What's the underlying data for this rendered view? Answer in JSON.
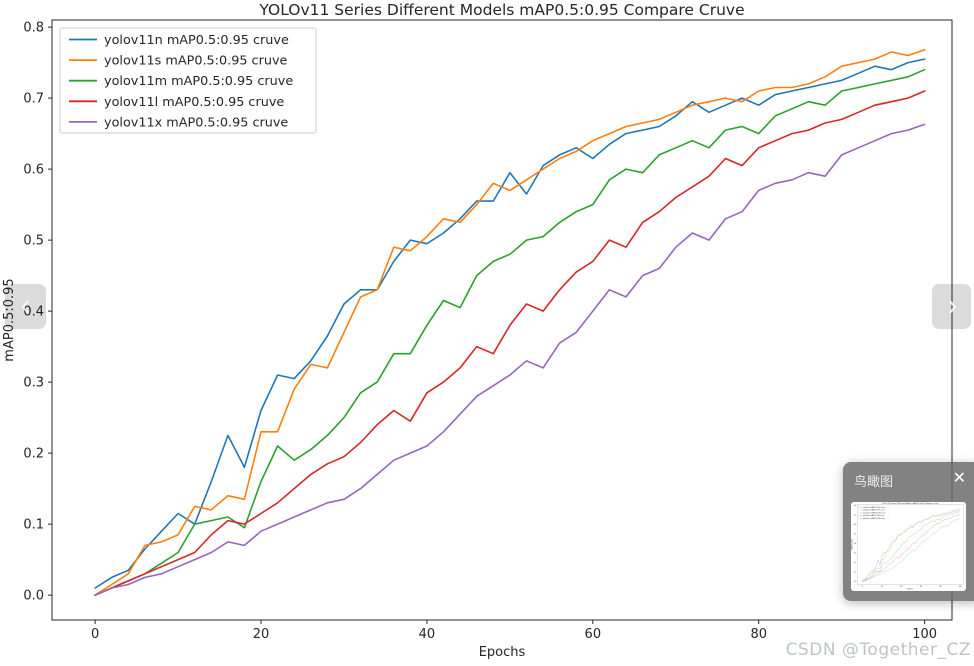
{
  "viewer": {
    "watermark": "CSDN @Together_CZ",
    "prev_icon": "chevron-left",
    "next_icon": "chevron-right",
    "minimap": {
      "title": "鸟瞰图",
      "close_icon": "x",
      "close_glyph": "✕"
    }
  },
  "chart_data": {
    "type": "line",
    "title": "YOLOv11 Series Different Models mAP0.5:0.95 Compare Cruve",
    "xlabel": "Epochs",
    "ylabel": "mAP0.5:0.95",
    "xlim": [
      -5.2,
      103.3
    ],
    "ylim": [
      -0.035,
      0.81
    ],
    "x_ticks": [
      0,
      20,
      40,
      60,
      80,
      100
    ],
    "x_tick_labels": [
      "0",
      "20",
      "40",
      "60",
      "80",
      "100"
    ],
    "y_ticks": [
      0.0,
      0.1,
      0.2,
      0.3,
      0.4,
      0.5,
      0.6,
      0.7,
      0.8
    ],
    "y_tick_labels": [
      "0.0",
      "0.1",
      "0.2",
      "0.3",
      "0.4",
      "0.5",
      "0.6",
      "0.7",
      "0.8"
    ],
    "grid": false,
    "legend_position": "upper left",
    "x_start": 0,
    "x_step": 2,
    "series": [
      {
        "name": "yolov11n mAP0.5:0.95 cruve",
        "color": "#1f77b4",
        "values": [
          0.01,
          0.025,
          0.035,
          0.065,
          0.09,
          0.115,
          0.1,
          0.16,
          0.225,
          0.18,
          0.26,
          0.31,
          0.305,
          0.33,
          0.365,
          0.41,
          0.43,
          0.43,
          0.47,
          0.5,
          0.495,
          0.51,
          0.53,
          0.555,
          0.555,
          0.595,
          0.565,
          0.605,
          0.62,
          0.63,
          0.615,
          0.635,
          0.65,
          0.655,
          0.66,
          0.675,
          0.695,
          0.68,
          0.69,
          0.7,
          0.69,
          0.705,
          0.71,
          0.715,
          0.72,
          0.725,
          0.735,
          0.745,
          0.74,
          0.75,
          0.755
        ]
      },
      {
        "name": "yolov11s mAP0.5:0.95 cruve",
        "color": "#ff7f0e",
        "values": [
          0.0,
          0.015,
          0.03,
          0.07,
          0.075,
          0.085,
          0.125,
          0.12,
          0.14,
          0.135,
          0.23,
          0.23,
          0.29,
          0.325,
          0.32,
          0.37,
          0.42,
          0.43,
          0.49,
          0.485,
          0.505,
          0.53,
          0.525,
          0.55,
          0.58,
          0.57,
          0.585,
          0.6,
          0.615,
          0.625,
          0.64,
          0.65,
          0.66,
          0.665,
          0.67,
          0.68,
          0.69,
          0.695,
          0.7,
          0.695,
          0.71,
          0.715,
          0.715,
          0.72,
          0.73,
          0.745,
          0.75,
          0.755,
          0.765,
          0.76,
          0.768
        ]
      },
      {
        "name": "yolov11m mAP0.5:0.95 cruve",
        "color": "#2ca02c",
        "values": [
          0.0,
          0.01,
          0.02,
          0.03,
          0.045,
          0.06,
          0.1,
          0.105,
          0.11,
          0.095,
          0.16,
          0.21,
          0.19,
          0.205,
          0.225,
          0.25,
          0.285,
          0.3,
          0.34,
          0.34,
          0.38,
          0.415,
          0.405,
          0.45,
          0.47,
          0.48,
          0.5,
          0.505,
          0.525,
          0.54,
          0.55,
          0.585,
          0.6,
          0.595,
          0.62,
          0.63,
          0.64,
          0.63,
          0.655,
          0.66,
          0.65,
          0.675,
          0.685,
          0.695,
          0.69,
          0.71,
          0.715,
          0.72,
          0.725,
          0.73,
          0.74
        ]
      },
      {
        "name": "yolov11l mAP0.5:0.95 cruve",
        "color": "#d62728",
        "values": [
          0.0,
          0.01,
          0.02,
          0.03,
          0.04,
          0.05,
          0.06,
          0.085,
          0.105,
          0.1,
          0.115,
          0.13,
          0.15,
          0.17,
          0.185,
          0.195,
          0.215,
          0.24,
          0.26,
          0.245,
          0.285,
          0.3,
          0.32,
          0.35,
          0.34,
          0.38,
          0.41,
          0.4,
          0.43,
          0.455,
          0.47,
          0.5,
          0.49,
          0.525,
          0.54,
          0.56,
          0.575,
          0.59,
          0.615,
          0.605,
          0.63,
          0.64,
          0.65,
          0.655,
          0.665,
          0.67,
          0.68,
          0.69,
          0.695,
          0.7,
          0.71
        ]
      },
      {
        "name": "yolov11x mAP0.5:0.95 cruve",
        "color": "#9467bd",
        "values": [
          0.0,
          0.01,
          0.015,
          0.025,
          0.03,
          0.04,
          0.05,
          0.06,
          0.075,
          0.07,
          0.09,
          0.1,
          0.11,
          0.12,
          0.13,
          0.135,
          0.15,
          0.17,
          0.19,
          0.2,
          0.21,
          0.23,
          0.255,
          0.28,
          0.295,
          0.31,
          0.33,
          0.32,
          0.355,
          0.37,
          0.4,
          0.43,
          0.42,
          0.45,
          0.46,
          0.49,
          0.51,
          0.5,
          0.53,
          0.54,
          0.57,
          0.58,
          0.585,
          0.595,
          0.59,
          0.62,
          0.63,
          0.64,
          0.65,
          0.655,
          0.663
        ]
      }
    ]
  }
}
